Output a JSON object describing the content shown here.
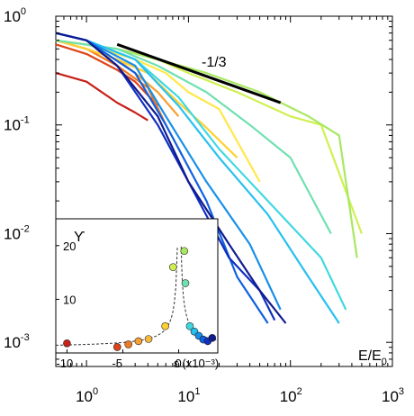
{
  "chart_data": [
    {
      "type": "line",
      "title": "",
      "xlabel": "E/E0",
      "ylabel": "",
      "xscale": "log",
      "yscale": "log",
      "xlim": [
        0.5,
        1000
      ],
      "ylim": [
        0.0006,
        1
      ],
      "grid": false,
      "legend": "none",
      "x_ticks": [
        {
          "base": "10",
          "exp": "0",
          "value": 1
        },
        {
          "base": "10",
          "exp": "1",
          "value": 10
        },
        {
          "base": "10",
          "exp": "2",
          "value": 100
        },
        {
          "base": "10",
          "exp": "3",
          "value": 1000
        }
      ],
      "y_ticks": [
        {
          "base": "10",
          "exp": "0",
          "value": 1
        },
        {
          "base": "10",
          "exp": "-1",
          "value": 0.1
        },
        {
          "base": "10",
          "exp": "-2",
          "value": 0.01
        },
        {
          "base": "10",
          "exp": "-3",
          "value": 0.001
        }
      ],
      "xlabel_parts": {
        "main": "E/E",
        "sub": "0"
      },
      "annotation": {
        "text": "-1/3",
        "slope_line": {
          "x": [
            2,
            80
          ],
          "y": [
            0.55,
            0.16
          ],
          "color": "#000000"
        }
      },
      "series": [
        {
          "color": "#c8201a",
          "x": [
            0.5,
            1.0,
            2.0,
            3.0,
            4.0
          ],
          "y": [
            0.3,
            0.25,
            0.16,
            0.13,
            0.11
          ]
        },
        {
          "color": "#dd4518",
          "x": [
            0.5,
            1.0,
            2.0,
            3.0,
            5.0
          ],
          "y": [
            0.55,
            0.45,
            0.32,
            0.25,
            0.15
          ]
        },
        {
          "color": "#f07a20",
          "x": [
            0.5,
            1.0,
            2.0,
            4.0,
            6.0
          ],
          "y": [
            0.6,
            0.5,
            0.35,
            0.22,
            0.1
          ]
        },
        {
          "color": "#f8a030",
          "x": [
            0.5,
            1.0,
            2.0,
            3.0,
            5.0,
            8.0
          ],
          "y": [
            0.6,
            0.5,
            0.4,
            0.3,
            0.2,
            0.12
          ]
        },
        {
          "color": "#ffd030",
          "x": [
            0.5,
            1.0,
            2.0,
            4.0,
            8.0,
            14.0,
            30.0
          ],
          "y": [
            0.6,
            0.5,
            0.4,
            0.3,
            0.16,
            0.1,
            0.05
          ]
        },
        {
          "color": "#ffe84a",
          "x": [
            0.5,
            1.0,
            3.0,
            6.0,
            10.0,
            20.0,
            50.0
          ],
          "y": [
            0.6,
            0.55,
            0.4,
            0.3,
            0.2,
            0.14,
            0.03
          ]
        },
        {
          "color": "#d0f050",
          "x": [
            0.5,
            2.0,
            5.0,
            10.0,
            30.0,
            100.0,
            200.0,
            500.0
          ],
          "y": [
            0.6,
            0.5,
            0.4,
            0.3,
            0.2,
            0.12,
            0.1,
            0.01
          ]
        },
        {
          "color": "#a8e860",
          "x": [
            0.5,
            2.0,
            5.0,
            15.0,
            50.0,
            150.0,
            300.0,
            450.0
          ],
          "y": [
            0.6,
            0.5,
            0.4,
            0.3,
            0.2,
            0.12,
            0.08,
            0.006
          ]
        },
        {
          "color": "#70e0b0",
          "x": [
            0.5,
            2.0,
            5.0,
            15.0,
            40.0,
            100.0,
            250.0
          ],
          "y": [
            0.6,
            0.5,
            0.35,
            0.2,
            0.1,
            0.05,
            0.01
          ]
        },
        {
          "color": "#40d8e0",
          "x": [
            0.5,
            1.0,
            3.0,
            8.0,
            20.0,
            60.0,
            200.0,
            350.0
          ],
          "y": [
            0.7,
            0.6,
            0.4,
            0.18,
            0.06,
            0.02,
            0.006,
            0.002
          ]
        },
        {
          "color": "#28c0f0",
          "x": [
            0.5,
            1.0,
            3.0,
            8.0,
            20.0,
            60.0,
            150.0,
            300.0
          ],
          "y": [
            0.7,
            0.6,
            0.4,
            0.15,
            0.05,
            0.015,
            0.004,
            0.0015
          ]
        },
        {
          "color": "#1890e8",
          "x": [
            0.5,
            1.0,
            3.0,
            6.0,
            15.0,
            40.0,
            80.0
          ],
          "y": [
            0.7,
            0.6,
            0.35,
            0.12,
            0.03,
            0.008,
            0.002
          ]
        },
        {
          "color": "#1060e0",
          "x": [
            0.5,
            1.0,
            3.0,
            6.0,
            15.0,
            30.0,
            60.0
          ],
          "y": [
            0.7,
            0.6,
            0.3,
            0.1,
            0.02,
            0.004,
            0.0015
          ]
        },
        {
          "color": "#1030c0",
          "x": [
            0.5,
            1.0,
            2.0,
            5.0,
            10.0,
            25.0,
            50.0,
            70.0
          ],
          "y": [
            0.7,
            0.6,
            0.35,
            0.1,
            0.03,
            0.006,
            0.003,
            0.0016
          ]
        },
        {
          "color": "#101a90",
          "x": [
            0.5,
            1.0,
            2.0,
            5.0,
            10.0,
            25.0,
            50.0,
            90.0
          ],
          "y": [
            0.7,
            0.6,
            0.35,
            0.12,
            0.03,
            0.008,
            0.003,
            0.0015
          ]
        }
      ]
    },
    {
      "type": "scatter",
      "title": "",
      "xlabel": "ε (x10⁻³)",
      "ylabel": "ϒ",
      "xlim": [
        -11,
        3.5
      ],
      "ylim": [
        0,
        25
      ],
      "grid": false,
      "legend": "none",
      "x_ticks": [
        -10,
        -5,
        0
      ],
      "y_ticks": [
        10,
        20
      ],
      "points": [
        {
          "x": -10.0,
          "y": 1.8,
          "color": "#c8201a"
        },
        {
          "x": -5.5,
          "y": 1.1,
          "color": "#dd4518"
        },
        {
          "x": -4.5,
          "y": 1.6,
          "color": "#f07a20"
        },
        {
          "x": -3.6,
          "y": 2.2,
          "color": "#f8a030"
        },
        {
          "x": -2.7,
          "y": 2.6,
          "color": "#f8b840"
        },
        {
          "x": -1.2,
          "y": 5.0,
          "color": "#ffd030"
        },
        {
          "x": -0.5,
          "y": 16.0,
          "color": "#d0f050"
        },
        {
          "x": 0.5,
          "y": 19.0,
          "color": "#a8e860"
        },
        {
          "x": 0.6,
          "y": 13.0,
          "color": "#70e0b0"
        },
        {
          "x": 1.0,
          "y": 5.0,
          "color": "#40d8e0"
        },
        {
          "x": 1.4,
          "y": 4.0,
          "color": "#28c0f0"
        },
        {
          "x": 1.8,
          "y": 3.2,
          "color": "#1890e8"
        },
        {
          "x": 2.2,
          "y": 2.5,
          "color": "#1060e0"
        },
        {
          "x": 2.6,
          "y": 2.2,
          "color": "#1030c0"
        },
        {
          "x": 3.0,
          "y": 2.8,
          "color": "#101a90"
        }
      ],
      "fit_curve": {
        "style": "dashed",
        "color": "#333333"
      }
    }
  ]
}
